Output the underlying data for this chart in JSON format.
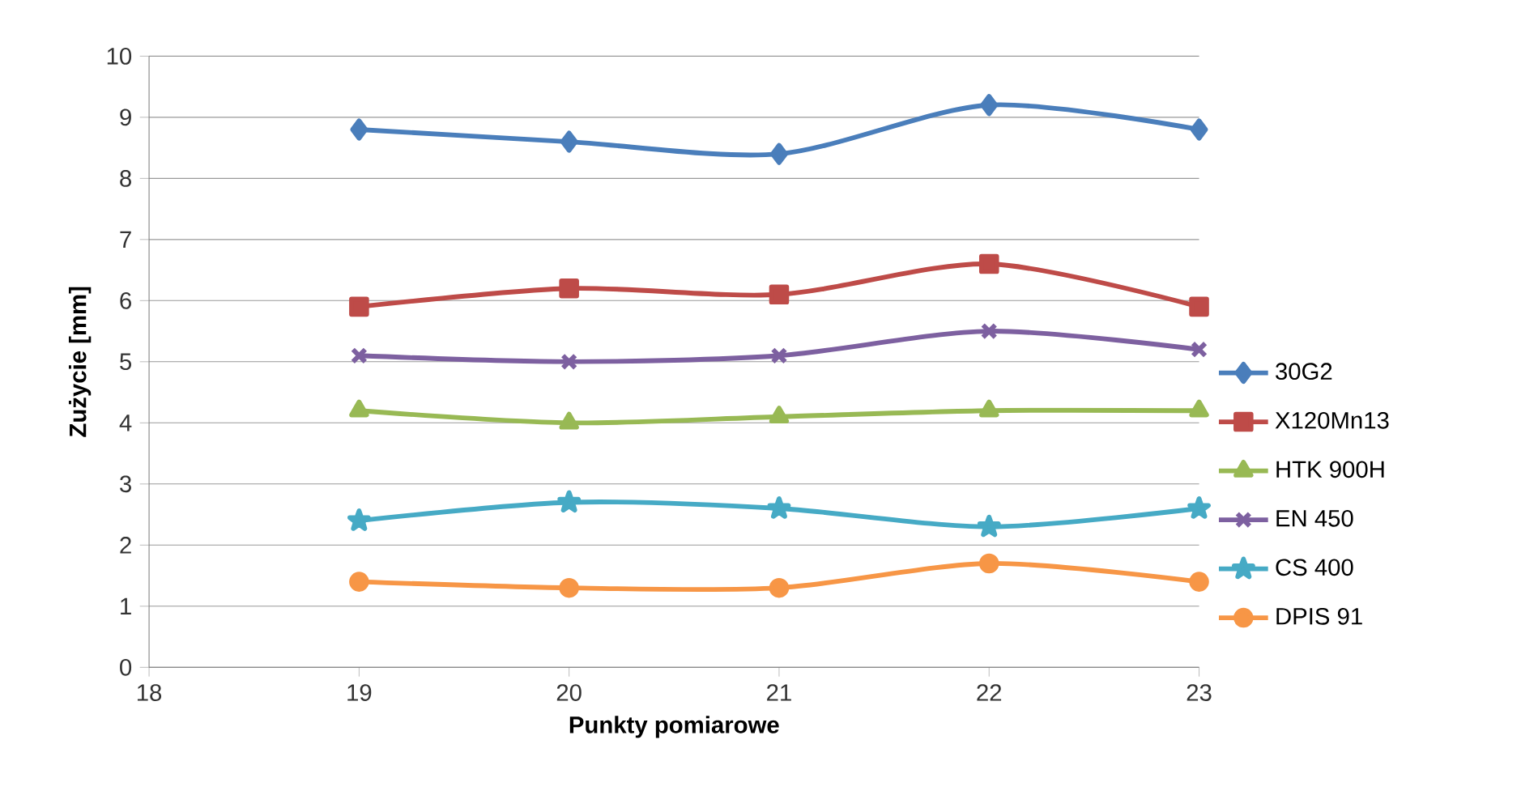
{
  "chart_data": {
    "type": "line",
    "xlabel": "Punkty pomiarowe",
    "ylabel": "Zużycie [mm]",
    "x": [
      19,
      20,
      21,
      22,
      23
    ],
    "xlim": [
      18,
      23
    ],
    "xticks": [
      18,
      19,
      20,
      21,
      22,
      23
    ],
    "ylim": [
      0,
      10
    ],
    "yticks": [
      0,
      1,
      2,
      3,
      4,
      5,
      6,
      7,
      8,
      9,
      10
    ],
    "grid": "y",
    "legend": "right",
    "series": [
      {
        "name": "30G2",
        "color": "#4a7ebb",
        "marker": "diamond",
        "values": [
          8.8,
          8.6,
          8.4,
          9.2,
          8.8
        ]
      },
      {
        "name": "X120Mn13",
        "color": "#be4b48",
        "marker": "square",
        "values": [
          5.9,
          6.2,
          6.1,
          6.6,
          5.9
        ]
      },
      {
        "name": "HTK 900H",
        "color": "#98b954",
        "marker": "triangle",
        "values": [
          4.2,
          4.0,
          4.1,
          4.2,
          4.2
        ]
      },
      {
        "name": "EN 450",
        "color": "#7d60a0",
        "marker": "cross",
        "values": [
          5.1,
          5.0,
          5.1,
          5.5,
          5.2
        ]
      },
      {
        "name": "CS 400",
        "color": "#46aac5",
        "marker": "star",
        "values": [
          2.4,
          2.7,
          2.6,
          2.3,
          2.6
        ]
      },
      {
        "name": "DPIS 91",
        "color": "#f79646",
        "marker": "circle",
        "values": [
          1.4,
          1.3,
          1.3,
          1.7,
          1.4
        ]
      }
    ]
  }
}
